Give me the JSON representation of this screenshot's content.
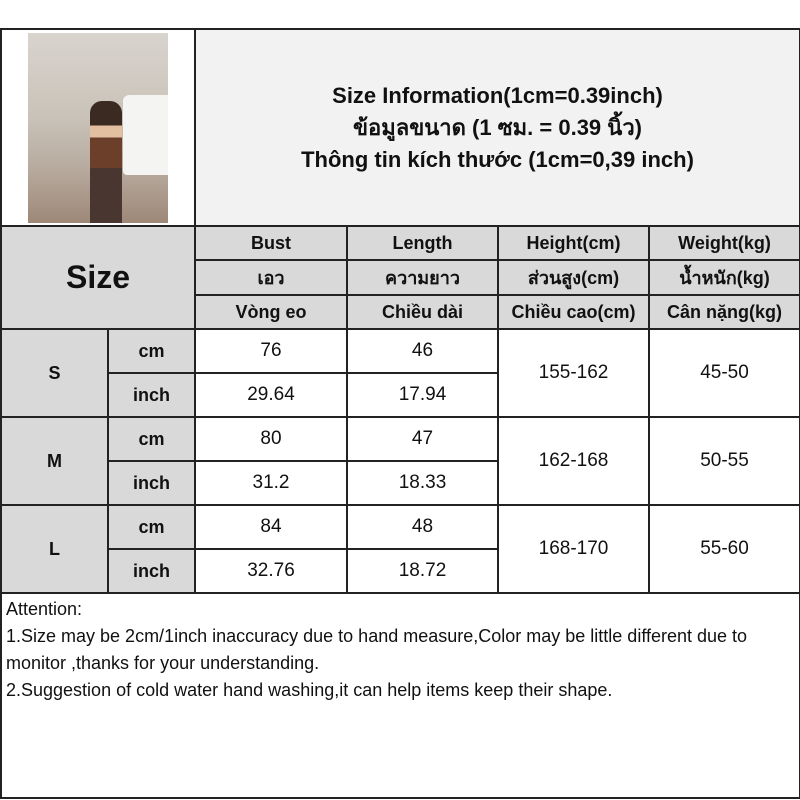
{
  "title": {
    "line1": "Size Information(1cm=0.39inch)",
    "line2": "ข้อมูลขนาด (1 ซม. = 0.39 นิ้ว)",
    "line3": "Thông tin kích thước (1cm=0,39 inch)"
  },
  "size_label": "Size",
  "columns": [
    {
      "en": "Bust",
      "th": "เอว",
      "vi": "Vòng eo"
    },
    {
      "en": "Length",
      "th": "ความยาว",
      "vi": "Chiều dài"
    },
    {
      "en": "Height(cm)",
      "th": "ส่วนสูง(cm)",
      "vi": "Chiều cao(cm)"
    },
    {
      "en": "Weight(kg)",
      "th": "น้ำหนัก(kg)",
      "vi": "Cân nặng(kg)"
    }
  ],
  "units": {
    "cm": "cm",
    "inch": "inch"
  },
  "rows": [
    {
      "size": "S",
      "bust_cm": "76",
      "length_cm": "46",
      "bust_in": "29.64",
      "length_in": "17.94",
      "height": "155-162",
      "weight": "45-50"
    },
    {
      "size": "M",
      "bust_cm": "80",
      "length_cm": "47",
      "bust_in": "31.2",
      "length_in": "18.33",
      "height": "162-168",
      "weight": "50-55"
    },
    {
      "size": "L",
      "bust_cm": "84",
      "length_cm": "48",
      "bust_in": "32.76",
      "length_in": "18.72",
      "height": "168-170",
      "weight": "55-60"
    }
  ],
  "attention": {
    "heading": "Attention:",
    "note1": "1.Size may be 2cm/1inch inaccuracy due to hand measure,Color may be little different due to monitor ,thanks for your understanding.",
    "note2": "2.Suggestion of cold water hand washing,it can help items keep their shape."
  }
}
